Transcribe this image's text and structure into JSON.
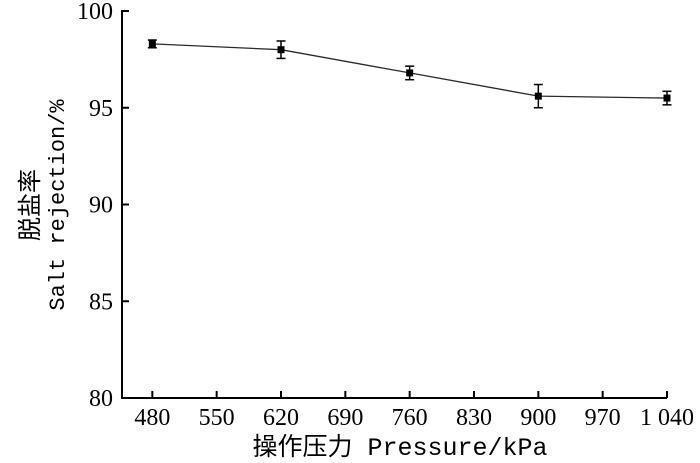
{
  "figure": {
    "background_color": "#ffffff",
    "ink_color": "#000000",
    "line_color": "#2a2a2a"
  },
  "chart_data": {
    "type": "line",
    "title": "",
    "xlabel": "操作压力 Pressure/kPa",
    "ylabel_lines": [
      "脱盐率",
      "Salt rejection/%"
    ],
    "x": [
      480,
      620,
      760,
      900,
      1040
    ],
    "series": [
      {
        "name": "Salt rejection",
        "values": [
          98.3,
          98.0,
          96.8,
          95.6,
          95.5
        ],
        "errors": [
          0.2,
          0.45,
          0.35,
          0.6,
          0.35
        ],
        "marker": "filled-square",
        "color": "#000000",
        "error_bars": true
      }
    ],
    "x_ticks": [
      480,
      550,
      620,
      690,
      760,
      830,
      900,
      970,
      1040
    ],
    "x_tick_labels": [
      "480",
      "550",
      "620",
      "690",
      "760",
      "830",
      "900",
      "970",
      "1 040"
    ],
    "y_ticks": [
      80,
      85,
      90,
      95,
      100
    ],
    "y_tick_labels": [
      "80",
      "85",
      "90",
      "95",
      "100"
    ],
    "xlim": [
      447,
      1040
    ],
    "ylim": [
      80,
      100
    ],
    "grid": false,
    "legend": "none",
    "spines": "left-bottom-only",
    "tick_direction": "in"
  }
}
